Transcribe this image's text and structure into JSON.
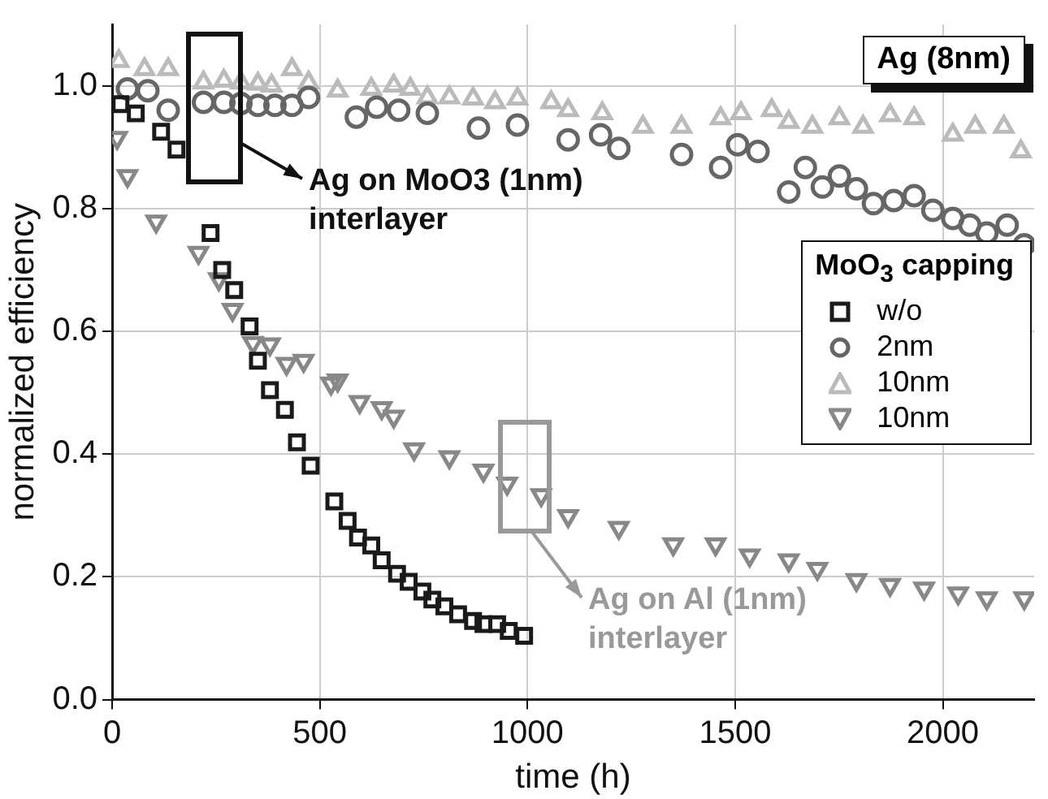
{
  "chart_data": {
    "type": "scatter",
    "xlabel": "time (h)",
    "ylabel": "normalized efficiency",
    "legend_title": "MoO$_{3}$ capping",
    "legend": "right",
    "grid": true,
    "xlim": [
      0,
      2220
    ],
    "xticks": [
      0,
      500,
      1000,
      1500,
      2000
    ],
    "ylim": [
      0,
      1.1
    ],
    "yticks": [
      {
        "value": 0,
        "label": "0.0"
      },
      {
        "value": 0.2,
        "label": "0.2"
      },
      {
        "value": 0.4,
        "label": "0.4"
      },
      {
        "value": 0.6,
        "label": "0.6"
      },
      {
        "value": 0.8,
        "label": "0.8"
      },
      {
        "value": 1,
        "label": "1.0"
      }
    ],
    "series": [
      {
        "name": "w/o",
        "color": "#1a1a1a",
        "marker": "square",
        "x": [
          20,
          57,
          118,
          155,
          237,
          265,
          294,
          331,
          351,
          380,
          416,
          445,
          478,
          535,
          567,
          592,
          624,
          649,
          686,
          714,
          747,
          771,
          800,
          833,
          869,
          894,
          927,
          955,
          992
        ],
        "values": [
          0.97,
          0.955,
          0.925,
          0.896,
          0.76,
          0.7,
          0.667,
          0.608,
          0.552,
          0.504,
          0.472,
          0.419,
          0.381,
          0.323,
          0.291,
          0.264,
          0.251,
          0.227,
          0.205,
          0.192,
          0.176,
          0.163,
          0.152,
          0.139,
          0.128,
          0.123,
          0.123,
          0.112,
          0.104
        ]
      },
      {
        "name": "2nm",
        "color": "#666666",
        "marker": "circle",
        "x": [
          37,
          86,
          135,
          220,
          269,
          310,
          351,
          392,
          433,
          473,
          588,
          637,
          690,
          759,
          882,
          976,
          1098,
          1176,
          1220,
          1371,
          1465,
          1506,
          1555,
          1629,
          1669,
          1710,
          1751,
          1792,
          1833,
          1882,
          1931,
          1976,
          2024,
          2065,
          2106,
          2155,
          2196
        ],
        "values": [
          0.995,
          0.992,
          0.96,
          0.973,
          0.973,
          0.971,
          0.968,
          0.968,
          0.968,
          0.981,
          0.949,
          0.965,
          0.96,
          0.955,
          0.931,
          0.936,
          0.912,
          0.92,
          0.898,
          0.888,
          0.867,
          0.904,
          0.893,
          0.827,
          0.867,
          0.835,
          0.853,
          0.832,
          0.808,
          0.813,
          0.821,
          0.797,
          0.784,
          0.773,
          0.76,
          0.773,
          0.741
        ]
      },
      {
        "name": "10nm",
        "color": "#bbbbbb",
        "marker": "triangle",
        "x": [
          16,
          78,
          135,
          220,
          269,
          310,
          351,
          384,
          433,
          473,
          543,
          624,
          678,
          718,
          759,
          812,
          869,
          922,
          976,
          1057,
          1098,
          1180,
          1278,
          1371,
          1465,
          1514,
          1588,
          1629,
          1686,
          1751,
          1808,
          1873,
          1931,
          2024,
          2078,
          2147,
          2188
        ],
        "values": [
          1.04,
          1.027,
          1.027,
          1.005,
          1.008,
          1.005,
          1.003,
          1.0,
          1.027,
          1.005,
          0.992,
          0.995,
          1.0,
          0.995,
          0.981,
          0.981,
          0.979,
          0.973,
          0.979,
          0.973,
          0.96,
          0.955,
          0.933,
          0.933,
          0.947,
          0.955,
          0.96,
          0.941,
          0.933,
          0.947,
          0.933,
          0.952,
          0.947,
          0.92,
          0.933,
          0.933,
          0.893
        ]
      },
      {
        "name": "10nm",
        "color": "#888888",
        "marker": "triangle-down",
        "x": [
          12,
          37,
          106,
          208,
          257,
          290,
          339,
          380,
          420,
          461,
          527,
          543,
          596,
          649,
          678,
          727,
          812,
          894,
          951,
          1033,
          1098,
          1220,
          1351,
          1453,
          1535,
          1629,
          1698,
          1792,
          1873,
          1955,
          2037,
          2106,
          2196
        ],
        "values": [
          0.915,
          0.853,
          0.779,
          0.728,
          0.685,
          0.635,
          0.581,
          0.579,
          0.547,
          0.552,
          0.515,
          0.52,
          0.485,
          0.475,
          0.461,
          0.408,
          0.395,
          0.373,
          0.352,
          0.333,
          0.299,
          0.28,
          0.253,
          0.253,
          0.235,
          0.227,
          0.213,
          0.195,
          0.187,
          0.181,
          0.173,
          0.165,
          0.165
        ]
      }
    ],
    "annotations": [
      "Ag (8nm)",
      "Ag on MoO3 (1nm)\ninterlayer",
      "Ag on Al (1nm)\ninterlayer"
    ]
  }
}
